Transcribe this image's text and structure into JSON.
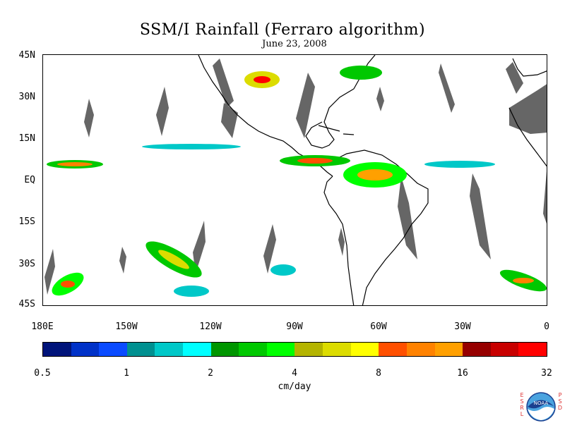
{
  "title": "SSM/I Rainfall (Ferraro algorithm)",
  "subtitle": "June 23, 2008",
  "map": {
    "lat_labels": [
      "45N",
      "30N",
      "15N",
      "EQ",
      "15S",
      "30S",
      "45S"
    ],
    "lon_labels": [
      "180E",
      "150W",
      "120W",
      "90W",
      "60W",
      "30W",
      "0"
    ],
    "extent": {
      "lon_min": -180,
      "lon_max": 0,
      "lat_min": -45,
      "lat_max": 45
    },
    "no_data_color": "#666666",
    "coast_color": "#000000"
  },
  "colorbar": {
    "colors": [
      "#00147a",
      "#0032c8",
      "#0a4bff",
      "#009090",
      "#00c8c8",
      "#00ffff",
      "#009600",
      "#00c800",
      "#00ff00",
      "#b4b400",
      "#dcdc00",
      "#ffff00",
      "#ff5000",
      "#ff8200",
      "#ffa000",
      "#960000",
      "#c80000",
      "#ff0000"
    ],
    "tick_labels": [
      "0.5",
      "1",
      "2",
      "4",
      "8",
      "16",
      "32"
    ],
    "units": "cm/day"
  },
  "logo": {
    "left_letters": [
      "E",
      "S",
      "R",
      "L"
    ],
    "right_letters": [
      "P",
      "S",
      "D"
    ],
    "text": "NOAA",
    "color_dark": "#1a3f8f",
    "color_light": "#4aa3df"
  }
}
